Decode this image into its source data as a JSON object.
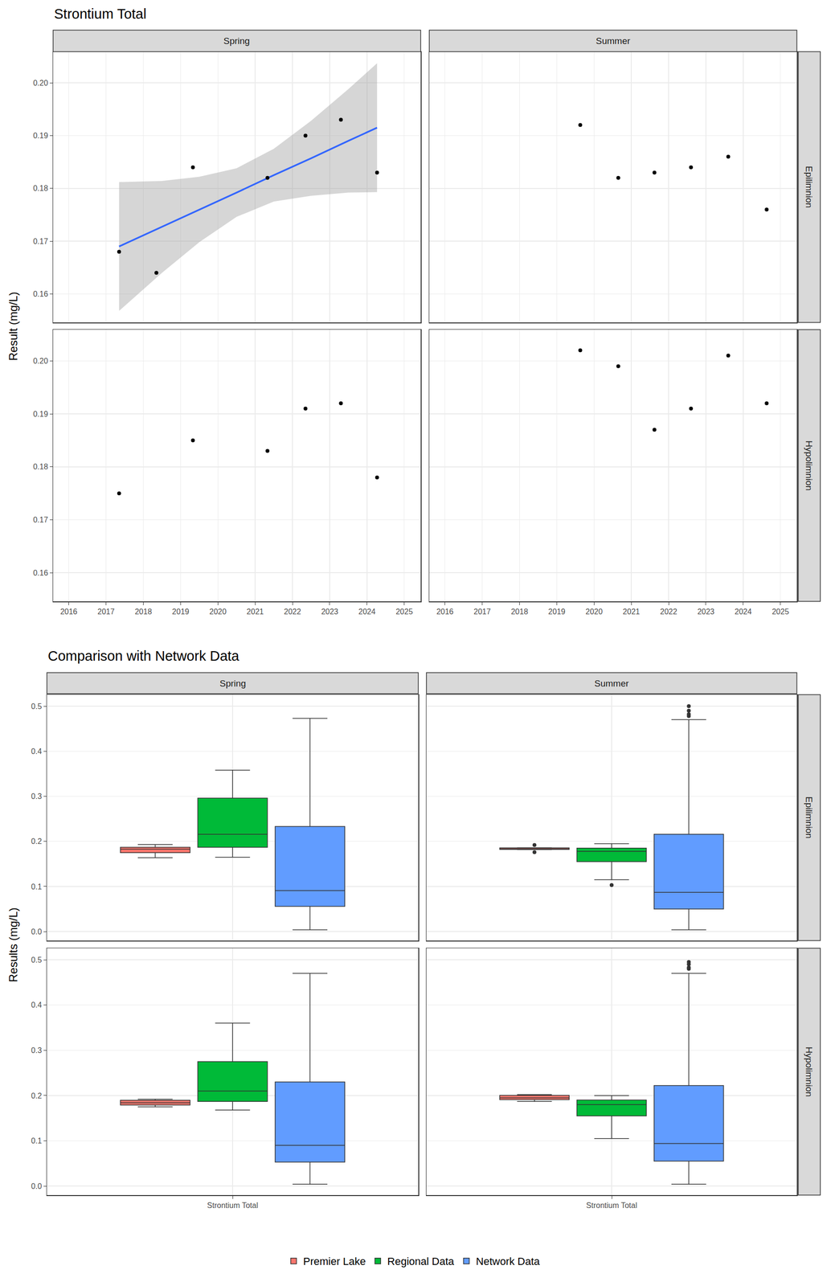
{
  "chart_data": [
    {
      "type": "scatter",
      "title": "Strontium Total",
      "y_label": "Result (mg/L)",
      "columns": [
        "Spring",
        "Summer"
      ],
      "rows": [
        "Epilimnion",
        "Hypolimnion"
      ],
      "xlim": [
        2015.58,
        2025.44
      ],
      "xticks": [
        2016,
        2017,
        2018,
        2019,
        2020,
        2021,
        2022,
        2023,
        2024,
        2025
      ],
      "ylim": [
        0.1546,
        0.2059
      ],
      "yticks": [
        0.16,
        0.17,
        0.18,
        0.19,
        {
          "value": 0.2,
          "label": "0.20"
        }
      ],
      "grid": true,
      "color": "#000000",
      "marker": "circle",
      "panels": [
        {
          "column": "Spring",
          "row": "Epilimnion",
          "x": [
            2017.35,
            2018.35,
            2019.33,
            2021.33,
            2022.35,
            2023.3,
            2024.27
          ],
          "values": [
            0.168,
            0.164,
            0.184,
            0.182,
            0.19,
            0.193,
            0.183
          ],
          "trend": {
            "color": "#3366FF",
            "x": [
              2017.35,
              2018.5,
              2019.5,
              2020.5,
              2021.5,
              2022.5,
              2023.5,
              2024.27
            ],
            "values": [
              0.169,
              0.1727,
              0.176,
              0.1792,
              0.1825,
              0.1857,
              0.189,
              0.1915
            ],
            "lower": [
              0.1568,
              0.164,
              0.1698,
              0.1746,
              0.1775,
              0.1786,
              0.1792,
              0.1793
            ],
            "upper": [
              0.1812,
              0.1814,
              0.1822,
              0.1838,
              0.1875,
              0.1928,
              0.1988,
              0.2037
            ]
          }
        },
        {
          "column": "Summer",
          "row": "Epilimnion",
          "x": [
            2019.63,
            2020.65,
            2021.62,
            2022.6,
            2023.6,
            2024.63
          ],
          "values": [
            0.192,
            0.182,
            0.183,
            0.184,
            0.186,
            0.176
          ]
        },
        {
          "column": "Spring",
          "row": "Hypolimnion",
          "x": [
            2017.35,
            2019.33,
            2021.33,
            2022.35,
            2023.3,
            2024.27
          ],
          "values": [
            0.175,
            0.185,
            0.183,
            0.191,
            0.192,
            0.178
          ]
        },
        {
          "column": "Summer",
          "row": "Hypolimnion",
          "x": [
            2019.63,
            2020.65,
            2021.62,
            2022.6,
            2023.6,
            2024.63
          ],
          "values": [
            0.202,
            0.199,
            0.187,
            0.191,
            0.201,
            0.192
          ]
        }
      ]
    },
    {
      "type": "box",
      "title": "Comparison with Network Data",
      "y_label": "Results (mg/L)",
      "columns": [
        "Spring",
        "Summer"
      ],
      "rows": [
        "Epilimnion",
        "Hypolimnion"
      ],
      "categories": [
        "Strontium Total"
      ],
      "ylim": [
        -0.02,
        0.5255
      ],
      "yticks": [
        {
          "value": 0,
          "label": "0.0"
        },
        0.1,
        0.2,
        0.3,
        0.4,
        0.5
      ],
      "grid": true,
      "legend": "bottom",
      "series": [
        {
          "name": "Premier Lake",
          "color": "#F8766D"
        },
        {
          "name": "Regional Data",
          "color": "#00BA38"
        },
        {
          "name": "Network Data",
          "color": "#619CFF"
        }
      ],
      "panels": [
        {
          "column": "Spring",
          "row": "Epilimnion",
          "boxes": [
            {
              "name": "Premier Lake",
              "q1": 0.175,
              "median": 0.183,
              "q3": 0.187,
              "lower": 0.164,
              "upper": 0.193
            },
            {
              "name": "Regional Data",
              "q1": 0.187,
              "median": 0.216,
              "q3": 0.296,
              "lower": 0.165,
              "upper": 0.358
            },
            {
              "name": "Network Data",
              "q1": 0.056,
              "median": 0.091,
              "q3": 0.233,
              "lower": 0.004,
              "upper": 0.473
            }
          ]
        },
        {
          "column": "Summer",
          "row": "Epilimnion",
          "boxes": [
            {
              "name": "Premier Lake",
              "q1": 0.1823,
              "median": 0.1835,
              "q3": 0.1855,
              "lower": 0.182,
              "upper": 0.186,
              "outliers": [
                0.192,
                0.176
              ]
            },
            {
              "name": "Regional Data",
              "q1": 0.155,
              "median": 0.178,
              "q3": 0.185,
              "lower": 0.115,
              "upper": 0.195,
              "outliers": [
                0.103
              ]
            },
            {
              "name": "Network Data",
              "q1": 0.05,
              "median": 0.087,
              "q3": 0.216,
              "lower": 0.004,
              "upper": 0.47,
              "outliers": [
                0.478,
                0.482,
                0.49,
                0.5
              ]
            }
          ]
        },
        {
          "column": "Spring",
          "row": "Hypolimnion",
          "boxes": [
            {
              "name": "Premier Lake",
              "q1": 0.179,
              "median": 0.184,
              "q3": 0.1895,
              "lower": 0.175,
              "upper": 0.192
            },
            {
              "name": "Regional Data",
              "q1": 0.187,
              "median": 0.21,
              "q3": 0.275,
              "lower": 0.168,
              "upper": 0.36
            },
            {
              "name": "Network Data",
              "q1": 0.053,
              "median": 0.09,
              "q3": 0.23,
              "lower": 0.004,
              "upper": 0.47
            }
          ]
        },
        {
          "column": "Summer",
          "row": "Hypolimnion",
          "boxes": [
            {
              "name": "Premier Lake",
              "q1": 0.191,
              "median": 0.195,
              "q3": 0.2005,
              "lower": 0.187,
              "upper": 0.202
            },
            {
              "name": "Regional Data",
              "q1": 0.155,
              "median": 0.18,
              "q3": 0.19,
              "lower": 0.105,
              "upper": 0.2
            },
            {
              "name": "Network Data",
              "q1": 0.055,
              "median": 0.094,
              "q3": 0.222,
              "lower": 0.004,
              "upper": 0.47,
              "outliers": [
                0.48,
                0.483,
                0.49,
                0.495
              ]
            }
          ]
        }
      ]
    }
  ]
}
